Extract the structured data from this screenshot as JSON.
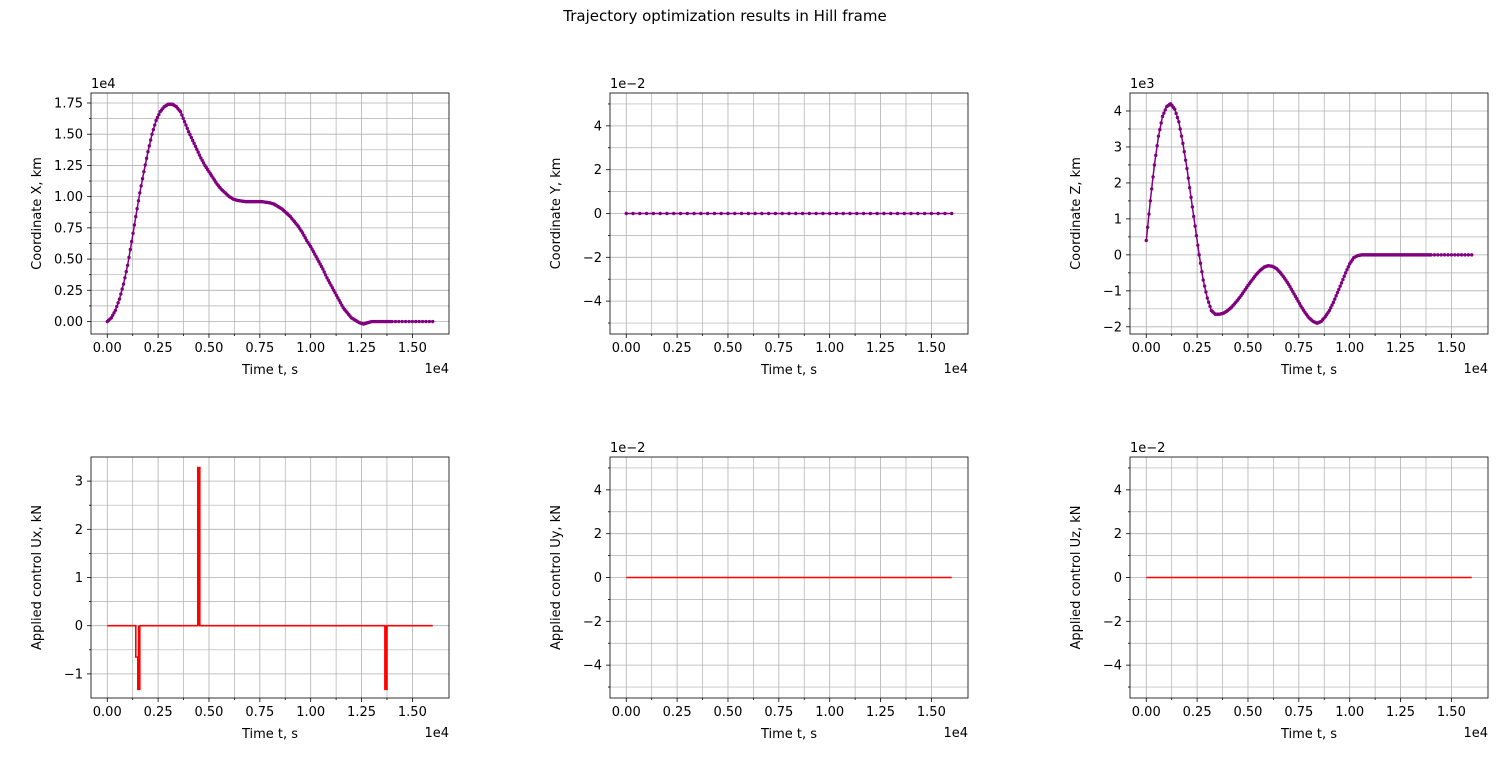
{
  "title": "Trajectory optimization results in Hill frame",
  "colors": {
    "trajectory": "#800080",
    "control": "#ff0000",
    "grid": "#b0b0b0",
    "axes": "#000000"
  },
  "chart_data": [
    {
      "type": "line",
      "marker": "dot",
      "color": "#800080",
      "xlabel": "Time t, s",
      "ylabel": "Coordinate X, km",
      "x_offset_text": "1e4",
      "y_offset_text": "1e4",
      "xlim": [
        -0.08,
        1.68
      ],
      "ylim": [
        -0.1,
        1.83
      ],
      "xticks": [
        0,
        0.25,
        0.5,
        0.75,
        1.0,
        1.25,
        1.5
      ],
      "xtick_labels": [
        "0.00",
        "0.25",
        "0.50",
        "0.75",
        "1.00",
        "1.25",
        "1.50"
      ],
      "yticks": [
        0,
        0.25,
        0.5,
        0.75,
        1.0,
        1.25,
        1.5,
        1.75
      ],
      "ytick_labels": [
        "0.00",
        "0.25",
        "0.50",
        "0.75",
        "1.00",
        "1.25",
        "1.50",
        "1.75"
      ],
      "grid": true,
      "x": [
        0,
        0.02,
        0.04,
        0.06,
        0.08,
        0.1,
        0.12,
        0.14,
        0.16,
        0.18,
        0.2,
        0.22,
        0.24,
        0.26,
        0.28,
        0.3,
        0.32,
        0.34,
        0.36,
        0.38,
        0.4,
        0.42,
        0.44,
        0.46,
        0.48,
        0.5,
        0.52,
        0.54,
        0.56,
        0.58,
        0.6,
        0.62,
        0.64,
        0.66,
        0.68,
        0.7,
        0.72,
        0.74,
        0.76,
        0.78,
        0.8,
        0.82,
        0.84,
        0.86,
        0.88,
        0.9,
        0.92,
        0.94,
        0.96,
        0.98,
        1.0,
        1.02,
        1.04,
        1.06,
        1.08,
        1.1,
        1.12,
        1.14,
        1.16,
        1.18,
        1.2,
        1.22,
        1.24,
        1.26,
        1.28,
        1.3,
        1.32,
        1.34,
        1.36,
        1.38,
        1.4,
        1.45,
        1.5,
        1.55,
        1.6
      ],
      "y": [
        0,
        0.03,
        0.09,
        0.18,
        0.3,
        0.45,
        0.64,
        0.84,
        1.03,
        1.2,
        1.36,
        1.5,
        1.61,
        1.68,
        1.72,
        1.74,
        1.74,
        1.72,
        1.68,
        1.6,
        1.52,
        1.45,
        1.38,
        1.31,
        1.25,
        1.2,
        1.15,
        1.1,
        1.06,
        1.03,
        1.0,
        0.98,
        0.97,
        0.965,
        0.96,
        0.96,
        0.96,
        0.96,
        0.96,
        0.955,
        0.95,
        0.94,
        0.92,
        0.9,
        0.87,
        0.84,
        0.8,
        0.76,
        0.71,
        0.65,
        0.6,
        0.54,
        0.48,
        0.42,
        0.35,
        0.29,
        0.23,
        0.17,
        0.11,
        0.07,
        0.03,
        0.01,
        -0.01,
        -0.02,
        -0.01,
        0,
        0,
        0,
        0,
        0,
        0,
        0,
        0,
        0,
        0
      ]
    },
    {
      "type": "line",
      "marker": "dot",
      "color": "#800080",
      "xlabel": "Time t, s",
      "ylabel": "Coordinate Y, km",
      "x_offset_text": "1e4",
      "y_offset_text": "1e−2",
      "xlim": [
        -0.08,
        1.68
      ],
      "ylim": [
        -5.5,
        5.5
      ],
      "xticks": [
        0,
        0.25,
        0.5,
        0.75,
        1.0,
        1.25,
        1.5
      ],
      "xtick_labels": [
        "0.00",
        "0.25",
        "0.50",
        "0.75",
        "1.00",
        "1.25",
        "1.50"
      ],
      "yticks": [
        -4,
        -2,
        0,
        2,
        4
      ],
      "ytick_labels": [
        "−4",
        "−2",
        "0",
        "2",
        "4"
      ],
      "grid": true,
      "x": [
        0,
        0.1,
        0.2,
        0.3,
        0.4,
        0.5,
        0.6,
        0.7,
        0.8,
        0.9,
        1.0,
        1.1,
        1.2,
        1.3,
        1.4,
        1.5,
        1.6
      ],
      "y": [
        0,
        0,
        0,
        0,
        0,
        0,
        0,
        0,
        0,
        0,
        0,
        0,
        0,
        0,
        0,
        0,
        0
      ]
    },
    {
      "type": "line",
      "marker": "dot",
      "color": "#800080",
      "xlabel": "Time t, s",
      "ylabel": "Coordinate Z, km",
      "x_offset_text": "1e4",
      "y_offset_text": "1e3",
      "xlim": [
        -0.08,
        1.68
      ],
      "ylim": [
        -2.2,
        4.5
      ],
      "xticks": [
        0,
        0.25,
        0.5,
        0.75,
        1.0,
        1.25,
        1.5
      ],
      "xtick_labels": [
        "0.00",
        "0.25",
        "0.50",
        "0.75",
        "1.00",
        "1.25",
        "1.50"
      ],
      "yticks": [
        -2,
        -1,
        0,
        1,
        2,
        3,
        4
      ],
      "ytick_labels": [
        "−2",
        "−1",
        "0",
        "1",
        "2",
        "3",
        "4"
      ],
      "grid": true,
      "x": [
        0,
        0.02,
        0.04,
        0.06,
        0.08,
        0.1,
        0.12,
        0.14,
        0.16,
        0.18,
        0.2,
        0.22,
        0.24,
        0.26,
        0.28,
        0.3,
        0.32,
        0.34,
        0.36,
        0.38,
        0.4,
        0.42,
        0.44,
        0.46,
        0.48,
        0.5,
        0.52,
        0.54,
        0.56,
        0.58,
        0.6,
        0.62,
        0.64,
        0.66,
        0.68,
        0.7,
        0.72,
        0.74,
        0.76,
        0.78,
        0.8,
        0.82,
        0.84,
        0.86,
        0.88,
        0.9,
        0.92,
        0.94,
        0.96,
        0.98,
        1.0,
        1.02,
        1.04,
        1.06,
        1.08,
        1.1,
        1.12,
        1.14,
        1.16,
        1.18,
        1.2,
        1.22,
        1.24,
        1.26,
        1.28,
        1.3,
        1.32,
        1.34,
        1.36,
        1.38,
        1.4,
        1.45,
        1.5,
        1.55,
        1.6
      ],
      "y": [
        0.4,
        1.5,
        2.5,
        3.3,
        3.85,
        4.12,
        4.2,
        4.05,
        3.7,
        3.1,
        2.4,
        1.6,
        0.8,
        0,
        -0.7,
        -1.2,
        -1.55,
        -1.65,
        -1.65,
        -1.62,
        -1.55,
        -1.45,
        -1.32,
        -1.18,
        -1.02,
        -0.85,
        -0.7,
        -0.55,
        -0.43,
        -0.34,
        -0.3,
        -0.32,
        -0.38,
        -0.5,
        -0.65,
        -0.82,
        -1.02,
        -1.22,
        -1.42,
        -1.6,
        -1.75,
        -1.85,
        -1.9,
        -1.85,
        -1.72,
        -1.55,
        -1.32,
        -1.05,
        -0.78,
        -0.5,
        -0.25,
        -0.08,
        -0.02,
        0,
        0,
        0,
        0,
        0,
        0,
        0,
        0,
        0,
        0,
        0,
        0,
        0,
        0,
        0,
        0,
        0,
        0,
        0,
        0,
        0,
        0
      ]
    },
    {
      "type": "line",
      "color": "#ff0000",
      "xlabel": "Time t, s",
      "ylabel": "Applied control Ux, kN",
      "x_offset_text": "1e4",
      "y_offset_text": "",
      "xlim": [
        -0.08,
        1.68
      ],
      "ylim": [
        -1.5,
        3.5
      ],
      "xticks": [
        0,
        0.25,
        0.5,
        0.75,
        1.0,
        1.25,
        1.5
      ],
      "xtick_labels": [
        "0.00",
        "0.25",
        "0.50",
        "0.75",
        "1.00",
        "1.25",
        "1.50"
      ],
      "yticks": [
        -1,
        0,
        1,
        2,
        3
      ],
      "ytick_labels": [
        "−1",
        "0",
        "1",
        "2",
        "3"
      ],
      "grid": true,
      "x": [
        0,
        0.14,
        0.14,
        0.15,
        0.15,
        0.16,
        0.16,
        0.445,
        0.445,
        0.455,
        0.455,
        1.365,
        1.365,
        1.375,
        1.375,
        1.6
      ],
      "y": [
        0,
        0,
        -0.65,
        -0.65,
        -1.32,
        -1.32,
        0,
        0,
        3.28,
        3.28,
        0,
        0,
        -1.32,
        -1.32,
        0,
        0
      ]
    },
    {
      "type": "line",
      "color": "#ff0000",
      "xlabel": "Time t, s",
      "ylabel": "Applied control Uy, kN",
      "x_offset_text": "1e4",
      "y_offset_text": "1e−2",
      "xlim": [
        -0.08,
        1.68
      ],
      "ylim": [
        -5.5,
        5.5
      ],
      "xticks": [
        0,
        0.25,
        0.5,
        0.75,
        1.0,
        1.25,
        1.5
      ],
      "xtick_labels": [
        "0.00",
        "0.25",
        "0.50",
        "0.75",
        "1.00",
        "1.25",
        "1.50"
      ],
      "yticks": [
        -4,
        -2,
        0,
        2,
        4
      ],
      "ytick_labels": [
        "−4",
        "−2",
        "0",
        "2",
        "4"
      ],
      "grid": true,
      "x": [
        0,
        1.6
      ],
      "y": [
        0,
        0
      ]
    },
    {
      "type": "line",
      "color": "#ff0000",
      "xlabel": "Time t, s",
      "ylabel": "Applied control Uz, kN",
      "x_offset_text": "1e4",
      "y_offset_text": "1e−2",
      "xlim": [
        -0.08,
        1.68
      ],
      "ylim": [
        -5.5,
        5.5
      ],
      "xticks": [
        0,
        0.25,
        0.5,
        0.75,
        1.0,
        1.25,
        1.5
      ],
      "xtick_labels": [
        "0.00",
        "0.25",
        "0.50",
        "0.75",
        "1.00",
        "1.25",
        "1.50"
      ],
      "yticks": [
        -4,
        -2,
        0,
        2,
        4
      ],
      "ytick_labels": [
        "−4",
        "−2",
        "0",
        "2",
        "4"
      ],
      "grid": true,
      "x": [
        0,
        1.6
      ],
      "y": [
        0,
        0
      ]
    }
  ]
}
